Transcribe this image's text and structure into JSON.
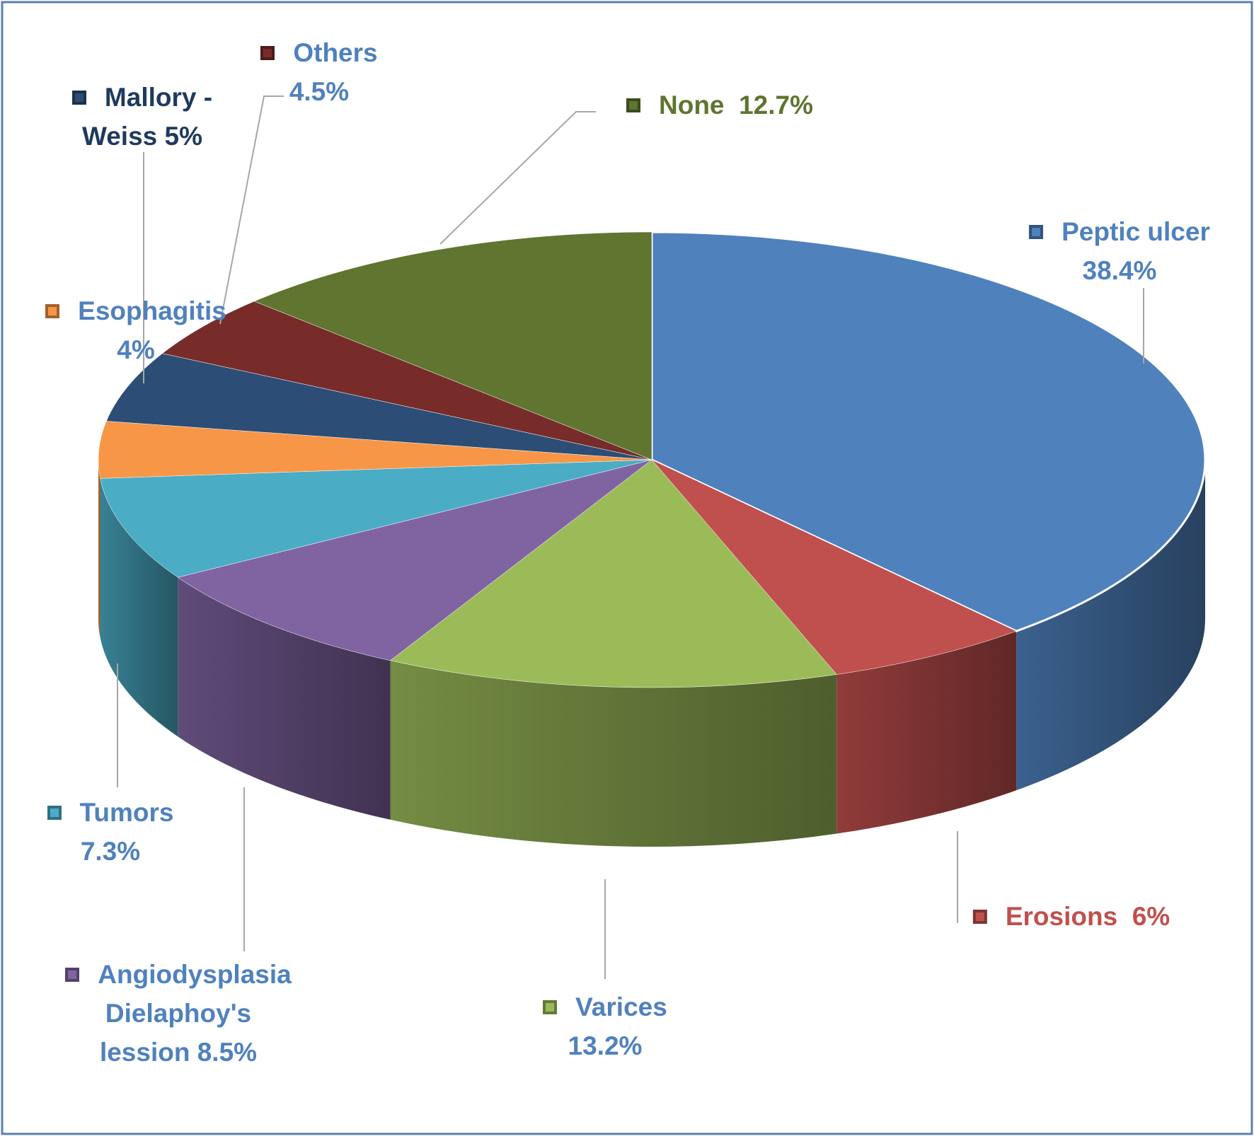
{
  "chart_data": {
    "type": "pie",
    "categories": [
      "Peptic ulcer",
      "Erosions",
      "Varices",
      "Angiodysplasia Dielaphoy's lession",
      "Tumors",
      "Esophagitis",
      "Mallory - Weiss",
      "Others",
      "None"
    ],
    "values": [
      38.4,
      6,
      13.2,
      8.5,
      7.3,
      4,
      5,
      4.5,
      12.7
    ],
    "value_labels": [
      "38.4%",
      "6%",
      "13.2%",
      "8.5%",
      "7.3%",
      "4%",
      "5%",
      "4.5%",
      "12.7%"
    ],
    "colors": [
      "#4f81bd",
      "#c0504d",
      "#9bbb59",
      "#8064a2",
      "#4bacc6",
      "#f79646",
      "#2c4d75",
      "#772c2a",
      "#5f7530"
    ],
    "label_colors": [
      "#4f81bd",
      "#c0504d",
      "#4f81bd",
      "#4f81bd",
      "#4f81bd",
      "#4f81bd",
      "#1f3a5c",
      "#4f81bd",
      "#5f7530"
    ]
  }
}
